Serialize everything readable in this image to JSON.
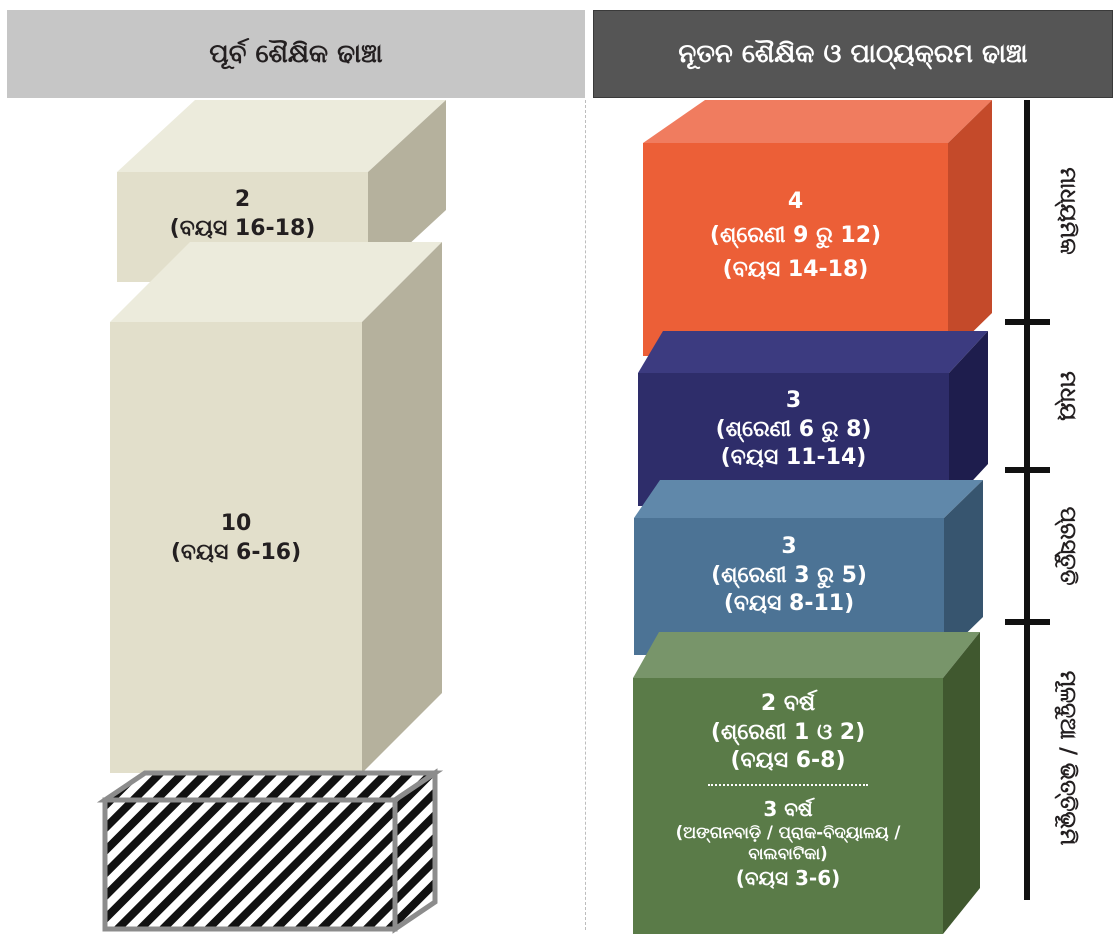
{
  "headers": {
    "previous": "ପୂର୍ବ ଶୈକ୍ଷିକ ଢାଞ୍ଚା",
    "new": "ନୂତନ ଶୈକ୍ଷିକ ଓ ପାଠ୍ୟକ୍ରମ ଢାଞ୍ଚା"
  },
  "previous_structure": {
    "top_block": {
      "years": "2",
      "age": "(ବୟସ 16-18)"
    },
    "middle_block": {
      "years": "10",
      "age": "(ବୟସ 6-16)"
    }
  },
  "new_structure": {
    "secondary": {
      "years": "4",
      "grades": "(ଶ୍ରେଣୀ 9 ରୁ 12)",
      "age": "(ବୟସ 14-18)"
    },
    "middle": {
      "years": "3",
      "grades": "(ଶ୍ରେଣୀ 6 ରୁ 8)",
      "age": "(ବୟସ 11-14)"
    },
    "preparatory": {
      "years": "3",
      "grades": "(ଶ୍ରେଣୀ 3 ରୁ 5)",
      "age": "(ବୟସ 8-11)"
    },
    "foundational": {
      "years": "2 ବର୍ଷ",
      "grades": "(ଶ୍ରେଣୀ 1 ଓ 2)",
      "age": "(ବୟସ 6-8)",
      "pre_years": "3 ବର୍ଷ",
      "pre_desc_line1": "(ଅଙ୍ଗନବାଡ଼ି / ପ୍ରାକ-ବିଦ୍ୟାଳୟ /",
      "pre_desc_line2": "ବାଲବାଟିକା)",
      "pre_age": "(ବୟସ 3-6)"
    }
  },
  "stages": {
    "secondary": "ମାଧ୍ୟମିକ",
    "middle": "ମଧ୍ୟ",
    "preparatory": "ପ୍ରସ୍ତୁତି",
    "foundational": "ମୂଳଦୁଆ / ଭିତ୍ତିଭୂମି"
  },
  "colors": {
    "beige_front": "#e2dfcb",
    "beige_side": "#b5b19d",
    "beige_top": "#ecebdc",
    "orange": "#ec5f37",
    "navy": "#2e2d6a",
    "steel": "#4c7395",
    "green": "#5a7b48"
  }
}
